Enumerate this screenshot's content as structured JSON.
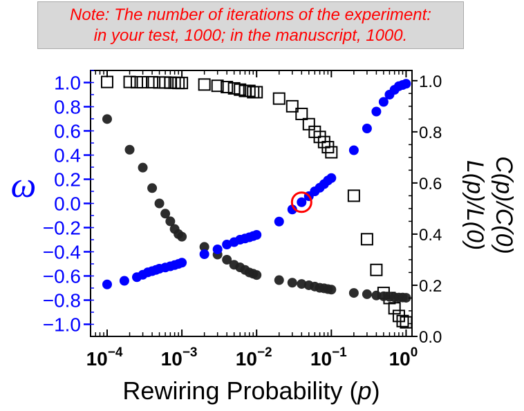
{
  "note": {
    "line1": "Note: The number of iterations of the experiment:",
    "line2": "in your test, 1000; in the manuscript, 1000."
  },
  "chart_data": {
    "type": "scatter",
    "xlabel_prefix": "Rewiring Probability (",
    "xlabel_var": "p",
    "xlabel_suffix": ")",
    "x_scale": "log",
    "xlim": [
      6e-05,
      1.2
    ],
    "x_ticks": [
      {
        "value": 0.0001,
        "base": "10",
        "exp": "−4"
      },
      {
        "value": 0.001,
        "base": "10",
        "exp": "−3"
      },
      {
        "value": 0.01,
        "base": "10",
        "exp": "−2"
      },
      {
        "value": 0.1,
        "base": "10",
        "exp": "−1"
      },
      {
        "value": 1,
        "base": "10",
        "exp": "0"
      }
    ],
    "left_axis": {
      "label": "ω",
      "color": "#0000ff",
      "ylim": [
        -1.1,
        1.1
      ],
      "ticks": [
        "1.0",
        "0.8",
        "0.6",
        "0.4",
        "0.2",
        "0.0",
        "−0.2",
        "−0.4",
        "−0.6",
        "−0.8",
        "−1.0"
      ],
      "tick_values": [
        1.0,
        0.8,
        0.6,
        0.4,
        0.2,
        0.0,
        -0.2,
        -0.4,
        -0.6,
        -0.8,
        -1.0
      ]
    },
    "right_axis": {
      "label_line1": "C(p)/C(0)",
      "label_line2": "L(p)/L(0)",
      "color": "#000000",
      "ylim": [
        0.0,
        1.04
      ],
      "ticks": [
        "1.0",
        "0.8",
        "0.6",
        "0.4",
        "0.2",
        "0.0"
      ],
      "tick_values": [
        1.0,
        0.8,
        0.6,
        0.4,
        0.2,
        0.0
      ]
    },
    "series": [
      {
        "name": "ω",
        "axis": "left",
        "marker": "circle",
        "color": "#0000ff",
        "x": [
          0.0001,
          0.00017,
          0.00025,
          0.0003,
          0.00035,
          0.0004,
          0.00045,
          0.0005,
          0.0006,
          0.0007,
          0.0008,
          0.0009,
          0.001,
          0.002,
          0.003,
          0.004,
          0.005,
          0.006,
          0.007,
          0.008,
          0.009,
          0.01,
          0.02,
          0.03,
          0.04,
          0.05,
          0.06,
          0.07,
          0.08,
          0.09,
          0.1,
          0.2,
          0.3,
          0.4,
          0.5,
          0.6,
          0.7,
          0.8,
          0.9,
          1.0
        ],
        "y": [
          -0.67,
          -0.64,
          -0.61,
          -0.59,
          -0.57,
          -0.56,
          -0.55,
          -0.54,
          -0.53,
          -0.52,
          -0.51,
          -0.5,
          -0.49,
          -0.42,
          -0.38,
          -0.34,
          -0.32,
          -0.3,
          -0.29,
          -0.28,
          -0.27,
          -0.26,
          -0.15,
          -0.05,
          0.01,
          0.06,
          0.1,
          0.13,
          0.16,
          0.19,
          0.21,
          0.44,
          0.62,
          0.76,
          0.84,
          0.9,
          0.94,
          0.97,
          0.98,
          0.99
        ]
      },
      {
        "name": "C(p)/C(0)",
        "axis": "right",
        "marker": "filled-circle",
        "color": "#222222",
        "x": [
          0.0001,
          0.0002,
          0.0003,
          0.0004,
          0.0005,
          0.0006,
          0.0007,
          0.0008,
          0.0009,
          0.001,
          0.002,
          0.003,
          0.004,
          0.005,
          0.006,
          0.007,
          0.008,
          0.009,
          0.01,
          0.02,
          0.03,
          0.04,
          0.05,
          0.06,
          0.07,
          0.08,
          0.09,
          0.1,
          0.2,
          0.3,
          0.4,
          0.5,
          0.6,
          0.7,
          0.8,
          0.9,
          1.0
        ],
        "y": [
          0.85,
          0.73,
          0.66,
          0.58,
          0.52,
          0.48,
          0.45,
          0.42,
          0.4,
          0.39,
          0.35,
          0.32,
          0.3,
          0.28,
          0.27,
          0.26,
          0.25,
          0.245,
          0.24,
          0.22,
          0.21,
          0.205,
          0.2,
          0.195,
          0.19,
          0.188,
          0.185,
          0.183,
          0.17,
          0.165,
          0.16,
          0.157,
          0.155,
          0.153,
          0.152,
          0.152,
          0.151
        ]
      },
      {
        "name": "L(p)/L(0)",
        "axis": "right",
        "marker": "open-square",
        "color": "#000000",
        "x": [
          0.0001,
          0.0002,
          0.00025,
          0.0003,
          0.0004,
          0.0005,
          0.0006,
          0.0007,
          0.0008,
          0.0009,
          0.001,
          0.002,
          0.003,
          0.004,
          0.005,
          0.006,
          0.007,
          0.008,
          0.009,
          0.01,
          0.02,
          0.03,
          0.04,
          0.05,
          0.06,
          0.07,
          0.08,
          0.09,
          0.1,
          0.2,
          0.3,
          0.4,
          0.5,
          0.6,
          0.7,
          0.8,
          0.9,
          1.0
        ],
        "y": [
          0.995,
          0.995,
          0.994,
          0.994,
          0.994,
          0.993,
          0.993,
          0.992,
          0.992,
          0.991,
          0.991,
          0.985,
          0.98,
          0.975,
          0.97,
          0.965,
          0.96,
          0.96,
          0.955,
          0.955,
          0.93,
          0.9,
          0.87,
          0.83,
          0.8,
          0.78,
          0.76,
          0.74,
          0.72,
          0.55,
          0.38,
          0.26,
          0.17,
          0.15,
          0.11,
          0.08,
          0.06,
          0.055
        ]
      }
    ],
    "highlight": {
      "x": 0.04,
      "y": 0.01,
      "axis": "left",
      "color": "#ff0000"
    }
  }
}
